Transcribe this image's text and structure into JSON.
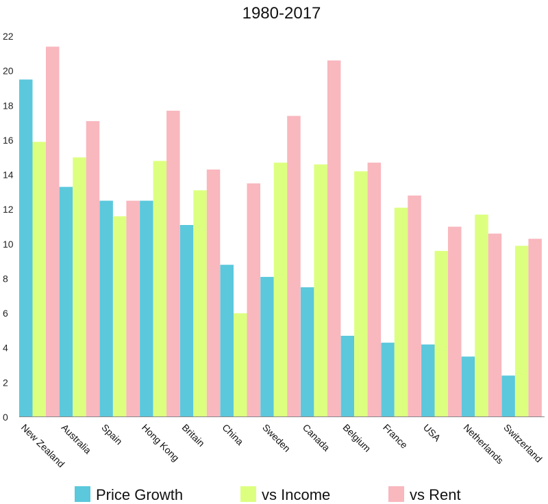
{
  "chart_data": {
    "type": "bar",
    "title": "1980-2017",
    "xlabel": "",
    "ylabel": "",
    "ylim": [
      0,
      22
    ],
    "yticks": [
      0,
      2,
      4,
      6,
      8,
      10,
      12,
      14,
      16,
      18,
      20,
      22
    ],
    "grid": false,
    "legend_position": "bottom",
    "categories": [
      "New Zealand",
      "Australia",
      "Spain",
      "Hong Kong",
      "Britain",
      "China",
      "Sweden",
      "Canada",
      "Belgium",
      "France",
      "USA",
      "Netherlands",
      "Switzerland"
    ],
    "series": [
      {
        "name": "Price Growth",
        "color": "#5bc8dc",
        "values": [
          19.5,
          13.3,
          12.5,
          12.5,
          11.1,
          8.8,
          8.1,
          7.5,
          4.7,
          4.3,
          4.2,
          3.5,
          2.4
        ]
      },
      {
        "name": "vs Income",
        "color": "#ddff80",
        "values": [
          15.9,
          15.0,
          11.6,
          14.8,
          13.1,
          6.0,
          14.7,
          14.6,
          14.2,
          12.1,
          9.6,
          11.7,
          9.9
        ]
      },
      {
        "name": "vs Rent",
        "color": "#f9b7be",
        "values": [
          21.4,
          17.1,
          12.5,
          17.7,
          14.3,
          13.5,
          17.4,
          20.6,
          14.7,
          12.8,
          11.0,
          10.6,
          10.3
        ]
      }
    ]
  }
}
